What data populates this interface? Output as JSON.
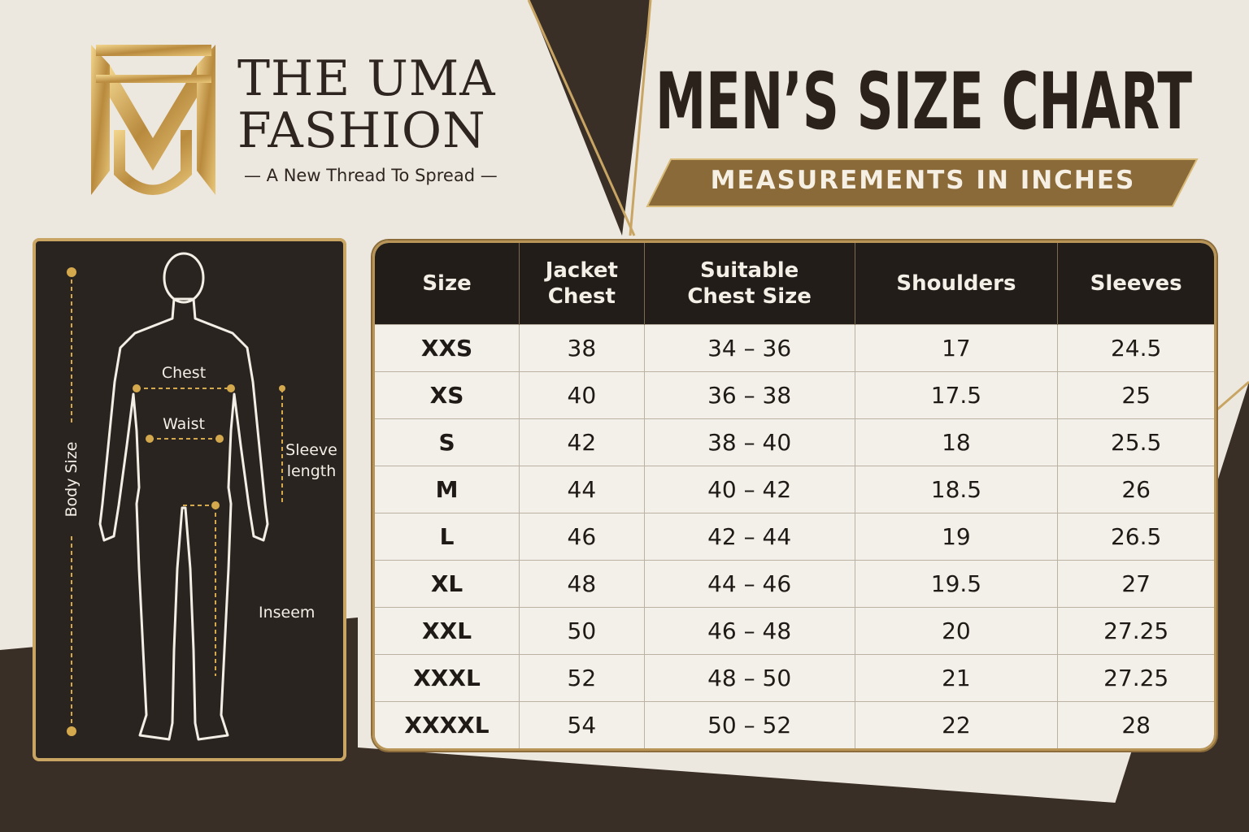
{
  "brand": {
    "line1": "THE UMA",
    "line2": "FASHION",
    "tagline": "— A New Thread To Spread —"
  },
  "title": "MEN’S SIZE CHART",
  "subtitle": "MEASUREMENTS IN INCHES",
  "diagram": {
    "chest": "Chest",
    "waist": "Waist",
    "sleeve": "Sleeve\nlength",
    "body": "Body Size",
    "inseam": "Inseem"
  },
  "table": {
    "header": [
      "Size",
      "Jacket\nChest",
      "Suitable\nChest Size",
      "Shoulders",
      "Sleeves"
    ],
    "rows": [
      [
        "XXS",
        "38",
        "34 – 36",
        "17",
        "24.5"
      ],
      [
        "XS",
        "40",
        "36 – 38",
        "17.5",
        "25"
      ],
      [
        "S",
        "42",
        "38 – 40",
        "18",
        "25.5"
      ],
      [
        "M",
        "44",
        "40 – 42",
        "18.5",
        "26"
      ],
      [
        "L",
        "46",
        "42 – 44",
        "19",
        "26.5"
      ],
      [
        "XL",
        "48",
        "44 – 46",
        "19.5",
        "27"
      ],
      [
        "XXL",
        "50",
        "46 – 48",
        "20",
        "27.25"
      ],
      [
        "XXXL",
        "52",
        "48 – 50",
        "21",
        "27.25"
      ],
      [
        "XXXXL",
        "54",
        "50 – 52",
        "22",
        "28"
      ]
    ]
  }
}
